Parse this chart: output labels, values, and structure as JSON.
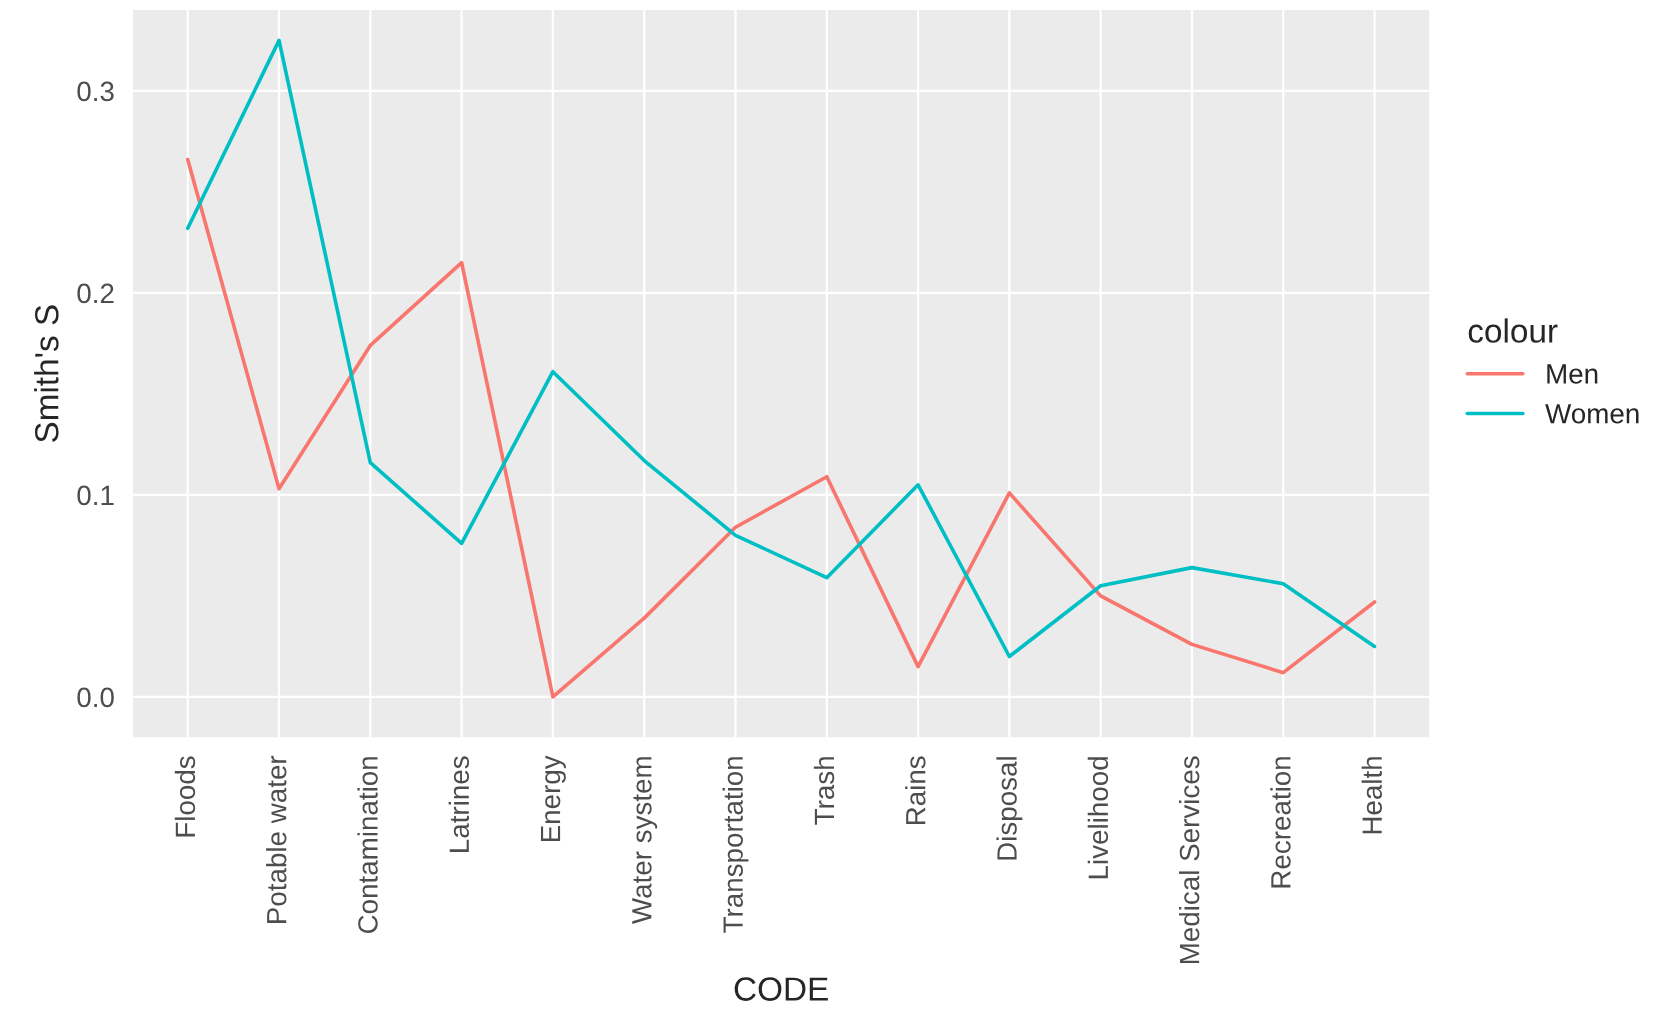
{
  "chart_data": {
    "type": "line",
    "categories": [
      "Floods",
      "Potable water",
      "Contamination",
      "Latrines",
      "Energy",
      "Water system",
      "Transportation",
      "Trash",
      "Rains",
      "Disposal",
      "Livelihood",
      "Medical Services",
      "Recreation",
      "Health"
    ],
    "series": [
      {
        "name": "Men",
        "color": "#f8766d",
        "values": [
          0.266,
          0.103,
          0.174,
          0.215,
          0.0,
          0.039,
          0.084,
          0.109,
          0.015,
          0.101,
          0.05,
          0.026,
          0.012,
          0.047
        ]
      },
      {
        "name": "Women",
        "color": "#00bfc4",
        "values": [
          0.232,
          0.325,
          0.116,
          0.076,
          0.161,
          0.117,
          0.08,
          0.059,
          0.105,
          0.02,
          0.055,
          0.064,
          0.056,
          0.025
        ]
      }
    ],
    "xlabel": "CODE",
    "ylabel": "Smith's S",
    "legend_title": "colour",
    "legend": "right",
    "ylim": [
      -0.02,
      0.34
    ],
    "yticks": [
      {
        "value": 0,
        "label": "0.0"
      },
      0.1,
      0.2,
      0.3
    ],
    "grid": true
  }
}
